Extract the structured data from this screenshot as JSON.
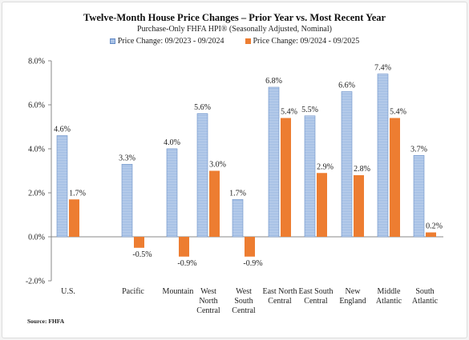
{
  "chart_data": {
    "type": "bar",
    "title": "Twelve-Month House Price Changes – Prior Year vs. Most Recent Year",
    "subtitle": "Purchase-Only FHFA HPI® (Seasonally Adjusted, Nominal)",
    "categories": [
      [
        "U.S."
      ],
      [
        "Pacific"
      ],
      [
        "Mountain"
      ],
      [
        "West",
        "North",
        "Central"
      ],
      [
        "West",
        "South",
        "Central"
      ],
      [
        "East North",
        "Central"
      ],
      [
        "East South",
        "Central"
      ],
      [
        "New",
        "England"
      ],
      [
        "Middle",
        "Atlantic"
      ],
      [
        "South",
        "Atlantic"
      ]
    ],
    "series": [
      {
        "name": "Price Change:  09/2023 - 09/2024",
        "values": [
          4.6,
          3.3,
          4.0,
          5.6,
          1.7,
          6.8,
          5.5,
          6.6,
          7.4,
          3.7
        ],
        "labels": [
          "4.6%",
          "3.3%",
          "4.0%",
          "5.6%",
          "1.7%",
          "6.8%",
          "5.5%",
          "6.6%",
          "7.4%",
          "3.7%"
        ],
        "color": "#8fb0de"
      },
      {
        "name": "Price Change:  09/2024 - 09/2025",
        "values": [
          1.7,
          -0.5,
          -0.9,
          3.0,
          -0.9,
          5.4,
          2.9,
          2.8,
          5.4,
          0.2
        ],
        "labels": [
          "1.7%",
          "-0.5%",
          "-0.9%",
          "3.0%",
          "-0.9%",
          "5.4%",
          "2.9%",
          "2.8%",
          "5.4%",
          "0.2%"
        ],
        "color": "#ed7d31"
      }
    ],
    "ylim": [
      -2.0,
      8.0
    ],
    "yticks": [
      "-2.0%",
      "0.0%",
      "2.0%",
      "4.0%",
      "6.0%",
      "8.0%"
    ],
    "ytick_values": [
      -2,
      0,
      2,
      4,
      6,
      8
    ],
    "grid": false,
    "legend": "top-center"
  },
  "footer": {
    "source": "Source: FHFA"
  }
}
